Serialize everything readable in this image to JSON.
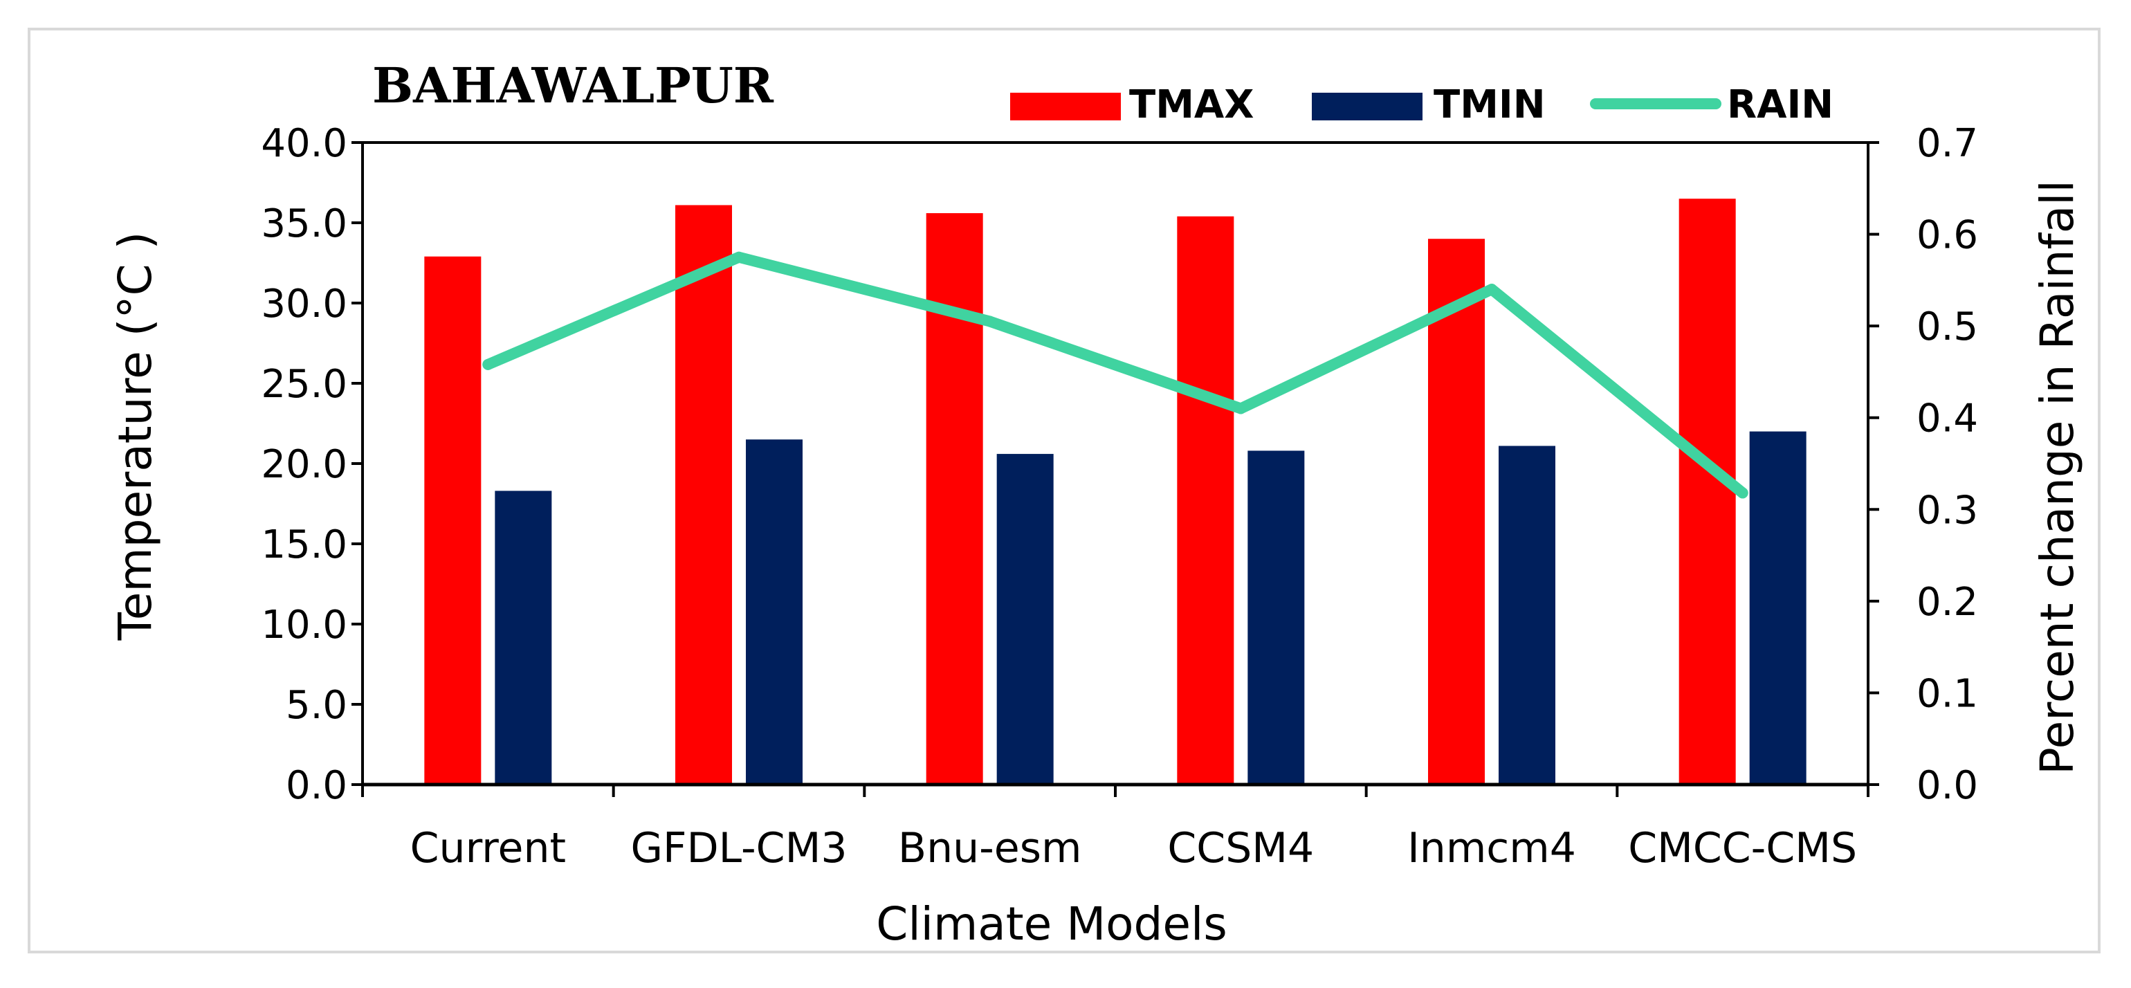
{
  "chart_data": {
    "type": "bar",
    "title": "BAHAWALPUR",
    "categories": [
      "Current",
      "GFDL-CM3",
      "Bnu-esm",
      "CCSM4",
      "Inmcm4",
      "CMCC-CMS"
    ],
    "series": [
      {
        "name": "TMAX",
        "type": "bar",
        "axis": "left",
        "color": "#ff0000",
        "values": [
          32.9,
          36.1,
          35.6,
          35.4,
          34.0,
          36.5
        ]
      },
      {
        "name": "TMIN",
        "type": "bar",
        "axis": "left",
        "color": "#001f5c",
        "values": [
          18.3,
          21.5,
          20.6,
          20.8,
          21.1,
          22.0
        ]
      },
      {
        "name": "RAIN",
        "type": "line",
        "axis": "right",
        "color": "#40d3a0",
        "values": [
          0.458,
          0.575,
          0.505,
          0.41,
          0.54,
          0.318
        ]
      }
    ],
    "xlabel": "Climate Models",
    "ylabel": "Temperature (°C )",
    "y2label": "Percent change in Rainfall",
    "ylim": [
      0,
      40
    ],
    "y2lim": [
      0,
      0.7
    ],
    "yticks": [
      "0.0",
      "5.0",
      "10.0",
      "15.0",
      "20.0",
      "25.0",
      "30.0",
      "35.0",
      "40.0"
    ],
    "y2ticks": [
      "0.0",
      "0.1",
      "0.2",
      "0.3",
      "0.4",
      "0.5",
      "0.6",
      "0.7"
    ],
    "legend_position": "top-right",
    "grid": false
  }
}
